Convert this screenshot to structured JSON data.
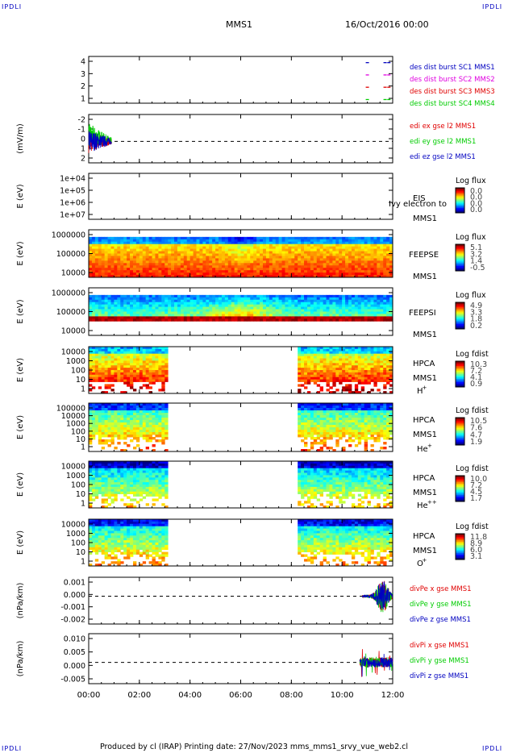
{
  "corner_tl": "IPDLI",
  "corner_tr": "IPDLI",
  "corner_bl": "IPDLI",
  "corner_br": "IPDLI",
  "header": {
    "spacecraft": "MMS1",
    "datetime": "16/Oct/2016 00:00"
  },
  "footer": "Produced by cl (IRAP)   Printing date: 27/Nov/2023   mms_mms1_srvy_vue_web2.cl",
  "xaxis": {
    "ticks": [
      "00:00",
      "02:00",
      "04:00",
      "06:00",
      "08:00",
      "10:00",
      "12:00"
    ],
    "range_hours": [
      0,
      12
    ]
  },
  "colors": {
    "red": "#e00000",
    "green": "#00cc00",
    "blue": "#0000c0",
    "magenta": "#e000e0"
  },
  "chart_data": [
    {
      "type": "scatter",
      "id": "burst",
      "yticks": [
        "1",
        "2",
        "3",
        "4"
      ],
      "ylim": [
        0.7,
        4.5
      ],
      "series": [
        {
          "name": "des dist burst SC1 MMS1",
          "color": "#0000c0",
          "y": 4,
          "x": [
            11.0,
            11.7,
            11.85
          ]
        },
        {
          "name": "des dist burst SC2 MMS2",
          "color": "#e000e0",
          "y": 3,
          "x": [
            11.0,
            11.7,
            11.85
          ]
        },
        {
          "name": "des dist burst SC3 MMS3",
          "color": "#e00000",
          "y": 2,
          "x": [
            11.0,
            11.7,
            11.85
          ]
        },
        {
          "name": "des dist burst SC4 MMS4",
          "color": "#00cc00",
          "y": 1,
          "x": [
            11.0,
            11.7,
            11.85
          ]
        }
      ]
    },
    {
      "type": "line",
      "id": "edi",
      "ylabel": "(mV/m)",
      "yticks": [
        "-2",
        "-1",
        "0",
        "1",
        "2"
      ],
      "ylim": [
        -2,
        2.5
      ],
      "series": [
        {
          "name": "edi ex gse l2 MMS1",
          "color": "#e00000"
        },
        {
          "name": "edi ey gse l2 MMS1",
          "color": "#00cc00"
        },
        {
          "name": "edi ez gse l2 MMS1",
          "color": "#0000c0"
        }
      ],
      "data_extent_hours": [
        0,
        0.9
      ]
    },
    {
      "type": "heatmap",
      "id": "eis",
      "ylabel": "E (eV)",
      "yticks": [
        "1e+04",
        "1e+05",
        "1e+06",
        "1e+07"
      ],
      "log": true,
      "labels": [
        "EIS",
        "MMS1"
      ],
      "overlap_label": "Ivy electron to",
      "cbar_title": "Log flux",
      "cbar_ticks": [
        "0.0",
        "0.0",
        "0.0",
        "0.0"
      ],
      "empty": true
    },
    {
      "type": "heatmap",
      "id": "feepse",
      "ylabel": "E (eV)",
      "yticks": [
        "1000000",
        "100000",
        "10000"
      ],
      "log": true,
      "labels": [
        "FEEPSE",
        "MMS1"
      ],
      "cbar_title": "Log flux",
      "cbar_ticks": [
        "5.1",
        "3.2",
        "1.4",
        "-0.5"
      ]
    },
    {
      "type": "heatmap",
      "id": "feepsi",
      "ylabel": "E (eV)",
      "yticks": [
        "1000000",
        "100000",
        "10000"
      ],
      "log": true,
      "labels": [
        "FEEPSI",
        "MMS1"
      ],
      "cbar_title": "Log flux",
      "cbar_ticks": [
        "4.9",
        "3.3",
        "1.8",
        "0.2"
      ]
    },
    {
      "type": "heatmap",
      "id": "hpca_h",
      "ylabel": "E (eV)",
      "yticks": [
        "10000",
        "1000",
        "100",
        "10",
        "1"
      ],
      "log": true,
      "labels": [
        "HPCA",
        "MMS1"
      ],
      "species": "H",
      "species_sup": "+",
      "cbar_title": "Log fdist",
      "cbar_ticks": [
        "10.3",
        "7.2",
        "4.1",
        "0.9"
      ],
      "data_intervals_hours": [
        [
          0,
          3.1
        ],
        [
          8.3,
          12
        ]
      ]
    },
    {
      "type": "heatmap",
      "id": "hpca_he",
      "ylabel": "E (eV)",
      "yticks": [
        "100000",
        "10000",
        "1000",
        "100",
        "10",
        "1"
      ],
      "log": true,
      "labels": [
        "HPCA",
        "MMS1"
      ],
      "species": "He",
      "species_sup": "+",
      "cbar_title": "Log fdist",
      "cbar_ticks": [
        "10.5",
        "7.6",
        "4.7",
        "1.9"
      ],
      "data_intervals_hours": [
        [
          0,
          3.1
        ],
        [
          8.3,
          12
        ]
      ]
    },
    {
      "type": "heatmap",
      "id": "hpca_hepp",
      "ylabel": "E (eV)",
      "yticks": [
        "10000",
        "1000",
        "100",
        "10",
        "1"
      ],
      "log": true,
      "labels": [
        "HPCA",
        "MMS1"
      ],
      "species": "He",
      "species_sup": "++",
      "cbar_title": "Log fdist",
      "cbar_ticks": [
        "10.0",
        "7.2",
        "4.5",
        "1.7"
      ],
      "data_intervals_hours": [
        [
          0,
          3.1
        ],
        [
          8.3,
          12
        ]
      ]
    },
    {
      "type": "heatmap",
      "id": "hpca_o",
      "ylabel": "E (eV)",
      "yticks": [
        "10000",
        "1000",
        "100",
        "10",
        "1"
      ],
      "log": true,
      "labels": [
        "HPCA",
        "MMS1"
      ],
      "species": "O",
      "species_sup": "+",
      "cbar_title": "Log fdist",
      "cbar_ticks": [
        "11.8",
        "8.9",
        "6.0",
        "3.1"
      ],
      "data_intervals_hours": [
        [
          0,
          3.1
        ],
        [
          8.3,
          12
        ]
      ]
    },
    {
      "type": "line",
      "id": "divpe",
      "ylabel": "(nPa/km)",
      "yticks": [
        "0.001",
        "0.000",
        "-0.001",
        "-0.002"
      ],
      "ylim": [
        -0.0025,
        0.0017
      ],
      "series": [
        {
          "name": "divPe x gse MMS1",
          "color": "#e00000"
        },
        {
          "name": "divPe y gse MMS1",
          "color": "#00cc00"
        },
        {
          "name": "divPe z gse MMS1",
          "color": "#0000c0"
        }
      ],
      "data_extent_hours": [
        10.8,
        12
      ]
    },
    {
      "type": "line",
      "id": "divpi",
      "ylabel": "(nPa/km)",
      "yticks": [
        "0.010",
        "0.005",
        "0.000",
        "-0.005"
      ],
      "ylim": [
        -0.0085,
        0.0115
      ],
      "series": [
        {
          "name": "divPi x gse MMS1",
          "color": "#e00000"
        },
        {
          "name": "divPi y gse MMS1",
          "color": "#00cc00"
        },
        {
          "name": "divPi z gse MMS1",
          "color": "#0000c0"
        }
      ],
      "data_extent_hours": [
        10.7,
        12
      ]
    }
  ]
}
